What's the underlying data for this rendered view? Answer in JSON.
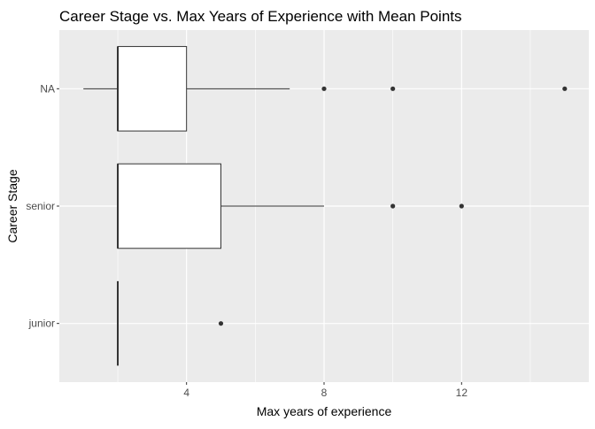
{
  "chart_data": {
    "type": "boxplot",
    "title": "Career Stage vs. Max Years of Experience with Mean Points",
    "xlabel": "Max years of experience",
    "ylabel": "Career Stage",
    "xlim": [
      0.3,
      15.7
    ],
    "x_ticks": [
      4,
      8,
      12
    ],
    "x_minor_ticks": [
      2,
      6,
      10,
      14
    ],
    "x_tick_labels": [
      "4",
      "8",
      "12"
    ],
    "categories": [
      "NA",
      "senior",
      "junior"
    ],
    "boxes": [
      {
        "category": "NA",
        "whisker_low": 1,
        "q1": 2,
        "median": 2,
        "q3": 4,
        "whisker_high": 7,
        "outliers": [
          8,
          10,
          15
        ]
      },
      {
        "category": "senior",
        "whisker_low": 2,
        "q1": 2,
        "median": 2,
        "q3": 5,
        "whisker_high": 8,
        "outliers": [
          10,
          12
        ]
      },
      {
        "category": "junior",
        "whisker_low": 2,
        "q1": 2,
        "median": 2,
        "q3": 2,
        "whisker_high": 2,
        "outliers": [
          5
        ]
      }
    ],
    "grid": true,
    "legend": "none",
    "colors": {
      "panel_background": "#ebebeb",
      "grid": "#ffffff",
      "box_fill": "#ffffff",
      "box_stroke": "#333333",
      "point": "#333333"
    }
  }
}
